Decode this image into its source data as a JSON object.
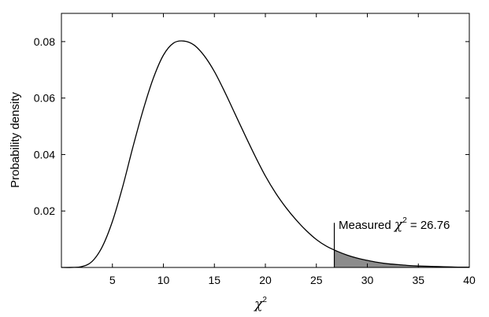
{
  "chart_data": {
    "type": "area",
    "title": "",
    "xlabel": "χ",
    "xlabel_superscript": "2",
    "ylabel": "Probability density",
    "xlim": [
      0,
      40
    ],
    "ylim": [
      0,
      0.09
    ],
    "x_ticks": [
      5,
      10,
      15,
      20,
      25,
      30,
      35,
      40
    ],
    "y_ticks": [
      0.02,
      0.04,
      0.06,
      0.08
    ],
    "x_tick_labels": [
      "5",
      "10",
      "15",
      "20",
      "25",
      "30",
      "35",
      "40"
    ],
    "y_tick_labels": [
      "0.02",
      "0.04",
      "0.06",
      "0.08"
    ],
    "grid": false,
    "legend": "none",
    "series": [
      {
        "x": [
          0,
          1,
          2,
          3,
          4,
          5,
          6,
          7,
          8,
          9,
          10,
          11,
          12,
          13,
          14,
          15,
          16,
          17,
          18,
          19,
          20,
          21,
          22,
          23,
          24,
          25,
          26,
          27,
          28,
          29,
          30,
          31,
          32,
          33,
          34,
          35,
          36,
          37,
          38,
          39,
          40
        ],
        "values": [
          0,
          1e-05,
          0.0003,
          0.0021,
          0.0073,
          0.0163,
          0.0285,
          0.0425,
          0.0556,
          0.0669,
          0.0752,
          0.0795,
          0.0802,
          0.0788,
          0.075,
          0.0694,
          0.0623,
          0.0546,
          0.0469,
          0.0394,
          0.0324,
          0.0264,
          0.0213,
          0.0169,
          0.0131,
          0.0099,
          0.0075,
          0.0058,
          0.0044,
          0.0033,
          0.0025,
          0.0018,
          0.0013,
          0.001,
          0.0007,
          0.0005,
          0.0004,
          0.0003,
          0.0002,
          0.0001,
          0.0001
        ]
      }
    ],
    "shaded_from_x": 26.76,
    "marker_line": {
      "x": 26.76,
      "y_top": 0.0158
    },
    "annotation": {
      "prefix": "Measured ",
      "symbol": "χ",
      "superscript": "2",
      "suffix": " = 26.76"
    },
    "colors": {
      "curve": "#000000",
      "shade": "#8c8c8c",
      "frame": "#000000"
    }
  }
}
